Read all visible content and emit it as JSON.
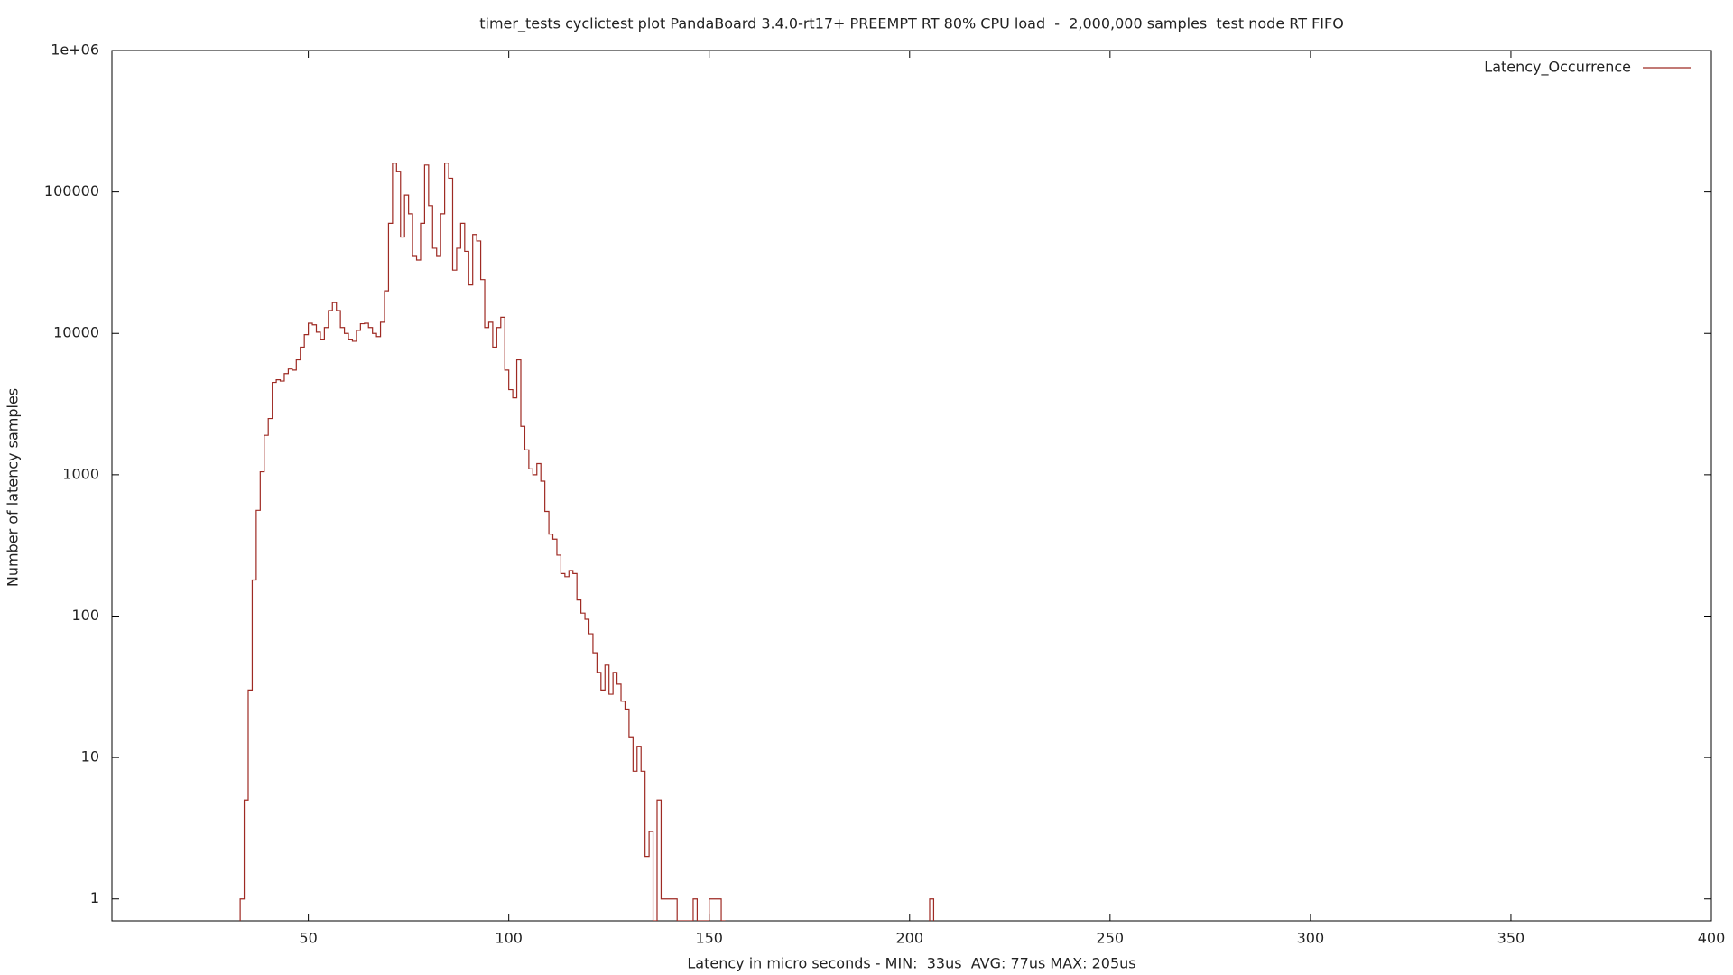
{
  "chart_data": {
    "type": "step",
    "title": "timer_tests cyclictest plot PandaBoard 3.4.0-rt17+ PREEMPT RT 80% CPU load  -  2,000,000 samples  test node RT FIFO",
    "x_label": "Latency in micro seconds - MIN:  33us  AVG: 77us MAX: 205us",
    "y_label": "Number of latency samples",
    "log_y": true,
    "grid": false,
    "legend": "top-right",
    "xlim": [
      1,
      400
    ],
    "xticks": [
      50,
      100,
      150,
      200,
      250,
      300,
      350,
      400
    ],
    "ylim": [
      0.7,
      1000000
    ],
    "yticks": [
      1,
      10,
      100,
      1000,
      10000,
      100000,
      {
        "value": 1000000,
        "label": "1e+06"
      }
    ],
    "x": [
      33,
      34,
      35,
      36,
      37,
      38,
      39,
      40,
      41,
      42,
      43,
      44,
      45,
      46,
      47,
      48,
      49,
      50,
      51,
      52,
      53,
      54,
      55,
      56,
      57,
      58,
      59,
      60,
      61,
      62,
      63,
      64,
      65,
      66,
      67,
      68,
      69,
      70,
      71,
      72,
      73,
      74,
      75,
      76,
      77,
      78,
      79,
      80,
      81,
      82,
      83,
      84,
      85,
      86,
      87,
      88,
      89,
      90,
      91,
      92,
      93,
      94,
      95,
      96,
      97,
      98,
      99,
      100,
      101,
      102,
      103,
      104,
      105,
      106,
      107,
      108,
      109,
      110,
      111,
      112,
      113,
      114,
      115,
      116,
      117,
      118,
      119,
      120,
      121,
      122,
      123,
      124,
      125,
      126,
      127,
      128,
      129,
      130,
      131,
      132,
      133,
      134,
      135,
      136,
      137,
      138,
      139,
      140,
      141,
      142,
      143,
      144,
      145,
      146,
      147,
      148,
      149,
      150,
      151,
      152,
      153,
      205
    ],
    "series": [
      {
        "name": "Latency_Occurrence",
        "color": "#9e2a23",
        "values": [
          1,
          5,
          30,
          180,
          560,
          1050,
          1900,
          2500,
          4500,
          4700,
          4600,
          5200,
          5600,
          5500,
          6500,
          8000,
          9800,
          11800,
          11500,
          10200,
          9000,
          11000,
          14500,
          16500,
          14500,
          11000,
          10000,
          9000,
          8800,
          10500,
          11700,
          11800,
          11000,
          10000,
          9500,
          12000,
          20000,
          60000,
          160000,
          140000,
          48000,
          95000,
          70000,
          35000,
          33000,
          60000,
          155000,
          80000,
          40000,
          35000,
          70000,
          160000,
          125000,
          28000,
          40000,
          60000,
          38000,
          22000,
          50000,
          45000,
          24000,
          11000,
          12000,
          8000,
          11000,
          13000,
          5500,
          4000,
          3500,
          6500,
          2200,
          1500,
          1100,
          1000,
          1200,
          900,
          550,
          380,
          350,
          270,
          200,
          190,
          210,
          200,
          130,
          105,
          95,
          75,
          55,
          40,
          30,
          45,
          28,
          40,
          33,
          25,
          22,
          14,
          8,
          12,
          8,
          2,
          3,
          0,
          5,
          1,
          1,
          1,
          1,
          0,
          0,
          0,
          0,
          1,
          0,
          0,
          0,
          1,
          1,
          1,
          0,
          1
        ]
      }
    ]
  }
}
